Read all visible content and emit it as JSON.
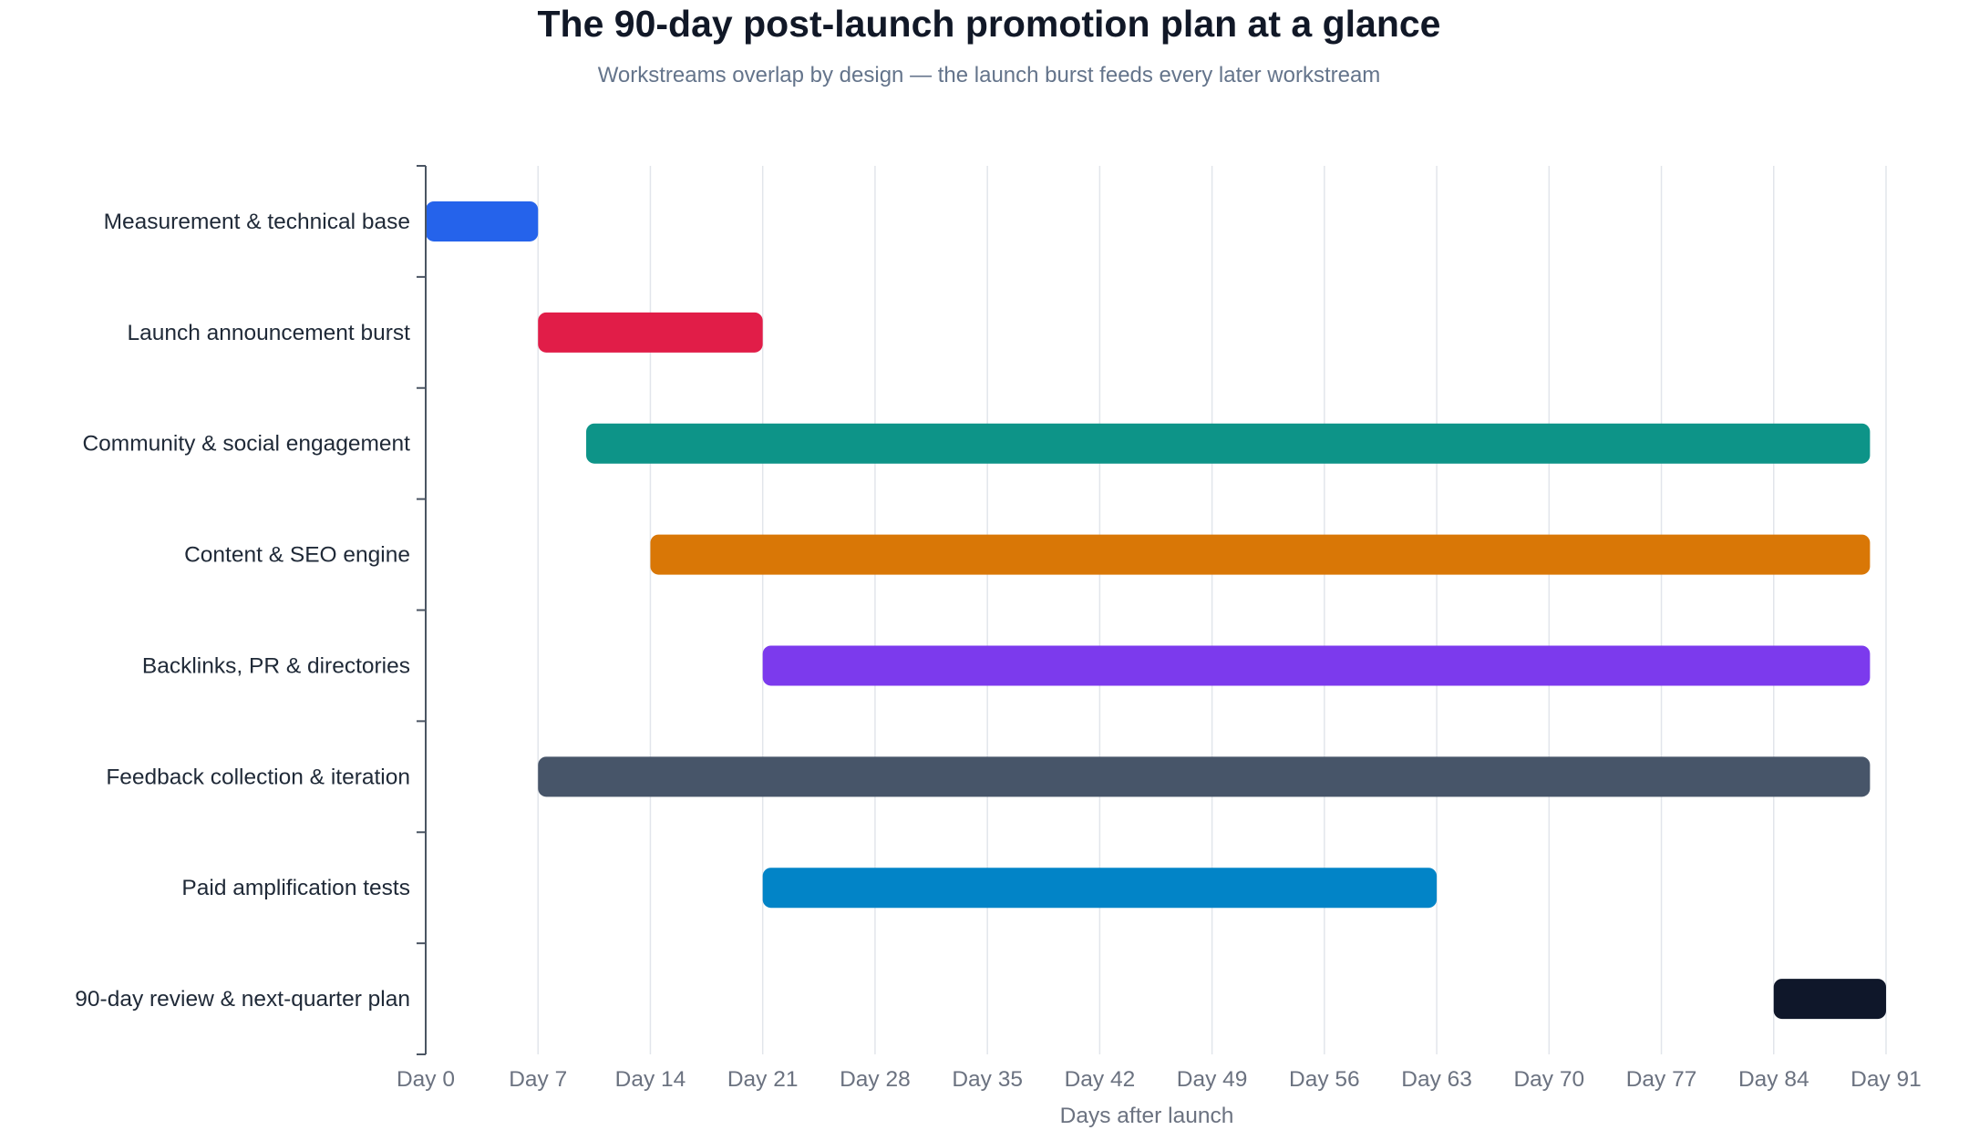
{
  "chart_data": {
    "type": "gantt",
    "title": "The 90-day post-launch promotion plan at a glance",
    "subtitle": "Workstreams overlap by design — the launch burst feeds every later workstream",
    "xlabel": "Days after launch",
    "ylabel": "",
    "xlim": [
      0,
      91
    ],
    "x_ticks": [
      "Day 0",
      "Day 7",
      "Day 14",
      "Day 21",
      "Day 28",
      "Day 35",
      "Day 42",
      "Day 49",
      "Day 56",
      "Day 63",
      "Day 70",
      "Day 77",
      "Day 84",
      "Day 91"
    ],
    "x_tick_values": [
      0,
      7,
      14,
      21,
      28,
      35,
      42,
      49,
      56,
      63,
      70,
      77,
      84,
      91
    ],
    "grid": "vertical",
    "tasks": [
      {
        "label": "Measurement & technical base",
        "start": 0,
        "end": 7,
        "color": "#2563eb"
      },
      {
        "label": "Launch announcement burst",
        "start": 7,
        "end": 21,
        "color": "#e11d48"
      },
      {
        "label": "Community & social engagement",
        "start": 10,
        "end": 90,
        "color": "#0d9488"
      },
      {
        "label": "Content & SEO engine",
        "start": 14,
        "end": 90,
        "color": "#d97706"
      },
      {
        "label": "Backlinks, PR & directories",
        "start": 21,
        "end": 90,
        "color": "#7c3aed"
      },
      {
        "label": "Feedback collection & iteration",
        "start": 7,
        "end": 90,
        "color": "#475569"
      },
      {
        "label": "Paid amplification tests",
        "start": 21,
        "end": 63,
        "color": "#0284c7"
      },
      {
        "label": "90-day review & next-quarter plan",
        "start": 84,
        "end": 91,
        "color": "#0f172a"
      }
    ]
  }
}
